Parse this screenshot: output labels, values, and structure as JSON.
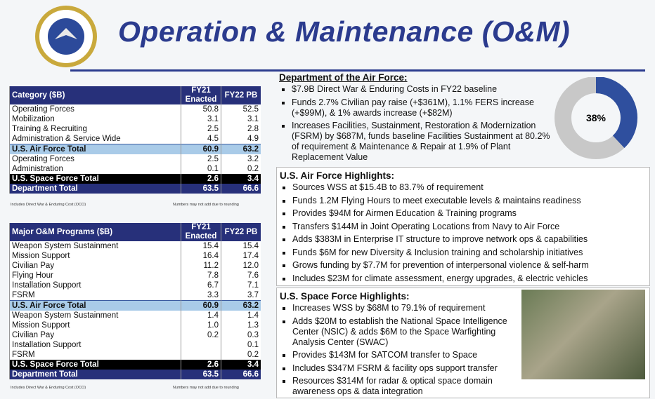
{
  "header": {
    "title": "Operation & Maintenance (O&M)"
  },
  "table1": {
    "columns": [
      "Category ($B)",
      "FY21 Enacted",
      "FY22 PB"
    ],
    "rows": [
      [
        "Operating Forces",
        "50.8",
        "52.5"
      ],
      [
        "Mobilization",
        "3.1",
        "3.1"
      ],
      [
        "Training & Recruiting",
        "2.5",
        "2.8"
      ],
      [
        "Administration & Service Wide",
        "4.5",
        "4.9"
      ],
      [
        "U.S. Air Force Total",
        "60.9",
        "63.2"
      ],
      [
        "Operating Forces",
        "2.5",
        "3.2"
      ],
      [
        "Administration",
        "0.1",
        "0.2"
      ],
      [
        "U.S. Space Force Total",
        "2.6",
        "3.4"
      ],
      [
        "Department Total",
        "63.5",
        "66.6"
      ]
    ],
    "notes": [
      "Includes Direct War & Enduring Cost (OCO)",
      "Numbers may not add due to rounding"
    ]
  },
  "table2": {
    "columns": [
      "Major O&M Programs ($B)",
      "FY21 Enacted",
      "FY22 PB"
    ],
    "rows": [
      [
        "Weapon System Sustainment",
        "15.4",
        "15.4"
      ],
      [
        "Mission Support",
        "16.4",
        "17.4"
      ],
      [
        "Civilian Pay",
        "11.2",
        "12.0"
      ],
      [
        "Flying Hour",
        "7.8",
        "7.6"
      ],
      [
        "Installation Support",
        "6.7",
        "7.1"
      ],
      [
        "FSRM",
        "3.3",
        "3.7"
      ],
      [
        "U.S. Air Force Total",
        "60.9",
        "63.2"
      ],
      [
        "Weapon System Sustainment",
        "1.4",
        "1.4"
      ],
      [
        "Mission Support",
        "1.0",
        "1.3"
      ],
      [
        "Civilian Pay",
        "0.2",
        "0.3"
      ],
      [
        "Installation Support",
        null,
        "0.1"
      ],
      [
        "FSRM",
        null,
        "0.2"
      ],
      [
        "U.S. Space Force Total",
        "2.6",
        "3.4"
      ],
      [
        "Department Total",
        "63.5",
        "66.6"
      ]
    ],
    "notes": [
      "Includes Direct War & Enduring Cost (OCO)",
      "Numbers may not add due to rounding"
    ]
  },
  "department": {
    "heading": "Department of the Air Force:",
    "bullets": [
      "$7.9B Direct War & Enduring Costs in FY22 baseline",
      "Funds 2.7% Civilian pay raise (+$361M), 1.1% FERS increase (+$99M), & 1% awards increase (+$82M)",
      "Increases Facilities, Sustainment, Restoration & Modernization (FSRM) by $687M, funds baseline Facilities Sustainment at 80.2% of requirement & Maintenance & Repair at 1.9% of Plant Replacement Value"
    ]
  },
  "donut": {
    "value": 38,
    "label": "38%"
  },
  "air_force": {
    "heading": "U.S. Air Force Highlights:",
    "bullets": [
      "Sources WSS at $15.4B to 83.7% of requirement",
      "Funds 1.2M Flying Hours to meet executable levels & maintains readiness",
      "Provides $94M for Airmen Education & Training programs",
      "Transfers $144M in Joint Operating Locations from Navy to Air Force",
      "Adds $383M in Enterprise IT structure to improve network ops & capabilities",
      "Funds $6M for new Diversity & Inclusion training and scholarship initiatives",
      "Grows funding by $7.7M for prevention of interpersonal violence & self-harm",
      "Includes $23M for climate assessment, energy upgrades, & electric vehicles"
    ]
  },
  "space_force": {
    "heading": "U.S. Space Force Highlights:",
    "bullets": [
      "Increases WSS by $68M to 79.1% of requirement",
      "Adds $20M to establish the National Space Intelligence Center (NSIC) & adds $6M to the Space Warfighting Analysis Center (SWAC)",
      "Provides $143M for SATCOM transfer to Space",
      "Includes $347M FSRM & facility ops support transfer",
      "Resources $314M for radar & optical space domain awareness ops & data integration"
    ]
  }
}
